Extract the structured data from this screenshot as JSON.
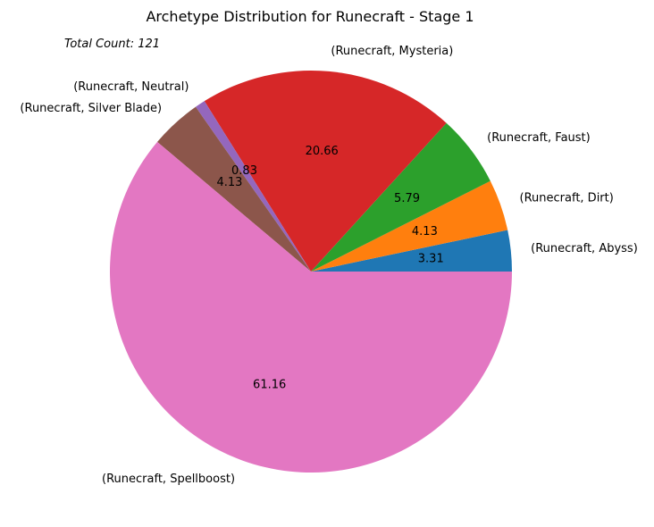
{
  "chart_data": {
    "type": "pie",
    "title": "Archetype Distribution for Runecraft - Stage 1",
    "annotation": "Total Count: 121",
    "slices": [
      {
        "label": "(Runecraft, Abyss)",
        "value": 3.31,
        "color": "#1f77b4"
      },
      {
        "label": "(Runecraft, Dirt)",
        "value": 4.13,
        "color": "#ff7f0e"
      },
      {
        "label": "(Runecraft, Faust)",
        "value": 5.79,
        "color": "#2ca02c"
      },
      {
        "label": "(Runecraft, Mysteria)",
        "value": 20.66,
        "color": "#d62728"
      },
      {
        "label": "(Runecraft, Neutral)",
        "value": 0.83,
        "color": "#9467bd"
      },
      {
        "label": "(Runecraft, Silver Blade)",
        "value": 4.13,
        "color": "#8c564b"
      },
      {
        "label": "(Runecraft, Spellboost)",
        "value": 61.16,
        "color": "#e377c2"
      }
    ]
  }
}
